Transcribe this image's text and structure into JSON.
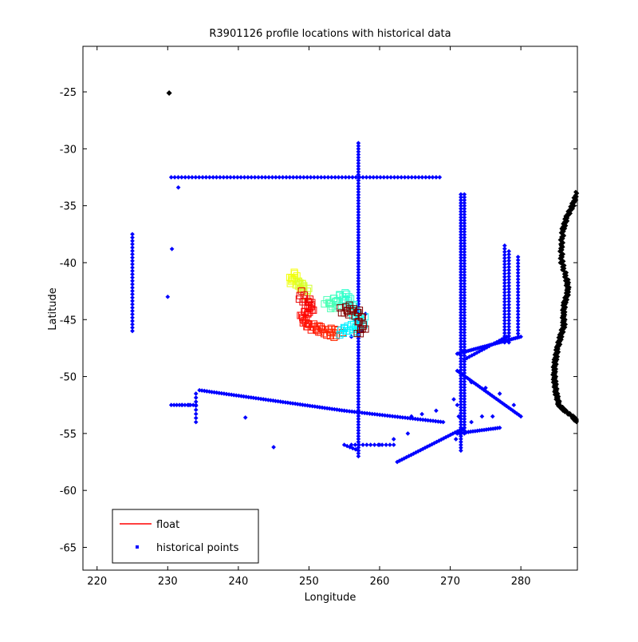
{
  "chart_data": {
    "type": "scatter",
    "title": "R3901126 profile locations with historical data",
    "xlabel": "Longitude",
    "ylabel": "Latitude",
    "xlim": [
      218,
      288
    ],
    "ylim": [
      -67,
      -21
    ],
    "xticks": [
      220,
      230,
      240,
      250,
      260,
      270,
      280
    ],
    "yticks": [
      -25,
      -30,
      -35,
      -40,
      -45,
      -50,
      -55,
      -60,
      -65
    ],
    "grid": false,
    "legend": {
      "placement": "bottom-left",
      "entries": [
        {
          "label": "float",
          "marker": "line",
          "color": "#ff0000"
        },
        {
          "label": "historical points",
          "marker": "dot",
          "color": "#0000ff"
        }
      ]
    },
    "series": [
      {
        "name": "historical points",
        "color": "#0000ff",
        "lines": [
          {
            "from": [
              230.5,
              -32.5
            ],
            "to": [
              268.5,
              -32.5
            ],
            "n": 78
          },
          {
            "from": [
              257.0,
              -29.5
            ],
            "to": [
              257.0,
              -57.0
            ],
            "n": 110
          },
          {
            "from": [
              225.0,
              -37.5
            ],
            "to": [
              225.0,
              -46.0
            ],
            "n": 30
          },
          {
            "from": [
              271.5,
              -34.0
            ],
            "to": [
              271.5,
              -56.5
            ],
            "n": 90
          },
          {
            "from": [
              272.0,
              -34.0
            ],
            "to": [
              272.0,
              -55.0
            ],
            "n": 84
          },
          {
            "from": [
              277.7,
              -38.5
            ],
            "to": [
              277.7,
              -47.0
            ],
            "n": 32
          },
          {
            "from": [
              278.3,
              -39.0
            ],
            "to": [
              278.3,
              -47.0
            ],
            "n": 30
          },
          {
            "from": [
              279.6,
              -39.5
            ],
            "to": [
              279.6,
              -46.5
            ],
            "n": 26
          },
          {
            "from": [
              234.5,
              -51.2
            ],
            "to": [
              255.0,
              -53.0
            ],
            "n": 60
          },
          {
            "from": [
              255.0,
              -53.0
            ],
            "to": [
              269.0,
              -54.0
            ],
            "n": 40
          },
          {
            "from": [
              230.5,
              -52.5
            ],
            "to": [
              234.0,
              -52.5
            ],
            "n": 10
          },
          {
            "from": [
              234.0,
              -51.5
            ],
            "to": [
              234.0,
              -54.0
            ],
            "n": 8
          },
          {
            "from": [
              271.0,
              -48.0
            ],
            "to": [
              280.0,
              -46.5
            ],
            "n": 36
          },
          {
            "from": [
              271.0,
              -49.5
            ],
            "to": [
              280.0,
              -53.5
            ],
            "n": 32
          },
          {
            "from": [
              271.0,
              -55.0
            ],
            "to": [
              277.0,
              -54.5
            ],
            "n": 20
          },
          {
            "from": [
              262.5,
              -57.5
            ],
            "to": [
              272.0,
              -54.5
            ],
            "n": 30
          },
          {
            "from": [
              256.0,
              -56.0
            ],
            "to": [
              262.0,
              -56.0
            ],
            "n": 12
          },
          {
            "from": [
              255.0,
              -56.0
            ],
            "to": [
              257.0,
              -56.5
            ],
            "n": 6
          },
          {
            "from": [
              272.0,
              -48.5
            ],
            "to": [
              278.0,
              -46.5
            ],
            "n": 18
          }
        ],
        "points": [
          [
            230.0,
            -43.0
          ],
          [
            230.6,
            -38.8
          ],
          [
            231.5,
            -33.4
          ],
          [
            241.0,
            -53.6
          ],
          [
            245.0,
            -56.2
          ],
          [
            232.0,
            -52.5
          ],
          [
            233.0,
            -52.5
          ],
          [
            273.0,
            -54.0
          ],
          [
            274.5,
            -53.5
          ],
          [
            276.0,
            -53.5
          ],
          [
            266.0,
            -53.3
          ],
          [
            264.5,
            -53.5
          ],
          [
            268.0,
            -53.0
          ],
          [
            262.0,
            -55.5
          ],
          [
            264.0,
            -55.0
          ],
          [
            260.0,
            -56.0
          ],
          [
            273.0,
            -50.5
          ],
          [
            275.0,
            -51.0
          ],
          [
            277.0,
            -51.5
          ],
          [
            279.0,
            -52.5
          ],
          [
            270.5,
            -52.0
          ],
          [
            271.0,
            -52.5
          ],
          [
            271.2,
            -53.5
          ],
          [
            270.8,
            -55.5
          ],
          [
            256.5,
            -45.0
          ],
          [
            257.5,
            -46.0
          ],
          [
            256.0,
            -46.5
          ],
          [
            258.0,
            -44.5
          ]
        ]
      },
      {
        "name": "coastline",
        "color": "#000000",
        "points": [
          [
            288.0,
            -33.8
          ],
          [
            287.3,
            -35.0
          ],
          [
            286.5,
            -36.0
          ],
          [
            286.0,
            -37.0
          ],
          [
            285.7,
            -38.5
          ],
          [
            285.8,
            -40.0
          ],
          [
            286.5,
            -41.5
          ],
          [
            286.7,
            -42.5
          ],
          [
            286.2,
            -43.5
          ],
          [
            286.0,
            -44.5
          ],
          [
            286.1,
            -45.5
          ],
          [
            285.6,
            -46.5
          ],
          [
            285.2,
            -47.5
          ],
          [
            284.9,
            -48.5
          ],
          [
            284.7,
            -49.5
          ],
          [
            284.8,
            -50.5
          ],
          [
            285.0,
            -51.5
          ],
          [
            285.4,
            -52.5
          ],
          [
            286.2,
            -53.0
          ],
          [
            287.3,
            -53.5
          ],
          [
            288.0,
            -54.0
          ]
        ]
      },
      {
        "name": "float",
        "color": "#ff0000",
        "points": [
          [
            248.0,
            -41.0
          ],
          [
            247.5,
            -41.5
          ],
          [
            248.5,
            -42.0
          ],
          [
            249.0,
            -41.8
          ],
          [
            249.5,
            -42.5
          ],
          [
            249.0,
            -43.2
          ],
          [
            250.0,
            -43.5
          ],
          [
            250.5,
            -44.0
          ],
          [
            249.5,
            -44.5
          ],
          [
            249.0,
            -45.0
          ],
          [
            250.0,
            -45.5
          ],
          [
            251.0,
            -45.8
          ],
          [
            252.0,
            -46.0
          ],
          [
            253.0,
            -46.0
          ],
          [
            254.0,
            -46.2
          ],
          [
            255.0,
            -46.0
          ],
          [
            256.0,
            -45.8
          ],
          [
            257.0,
            -45.6
          ],
          [
            257.5,
            -45.0
          ],
          [
            256.5,
            -44.5
          ],
          [
            256.0,
            -43.8
          ],
          [
            255.5,
            -43.0
          ],
          [
            254.5,
            -43.0
          ],
          [
            253.5,
            -43.5
          ],
          [
            252.5,
            -43.5
          ],
          [
            255.0,
            -44.5
          ],
          [
            256.0,
            -44.0
          ],
          [
            257.0,
            -44.5
          ],
          [
            257.8,
            -45.5
          ],
          [
            257.0,
            -46.5
          ]
        ]
      },
      {
        "name": "marker",
        "color": "#000000",
        "points": [
          [
            230.2,
            -25.1
          ]
        ]
      }
    ]
  }
}
